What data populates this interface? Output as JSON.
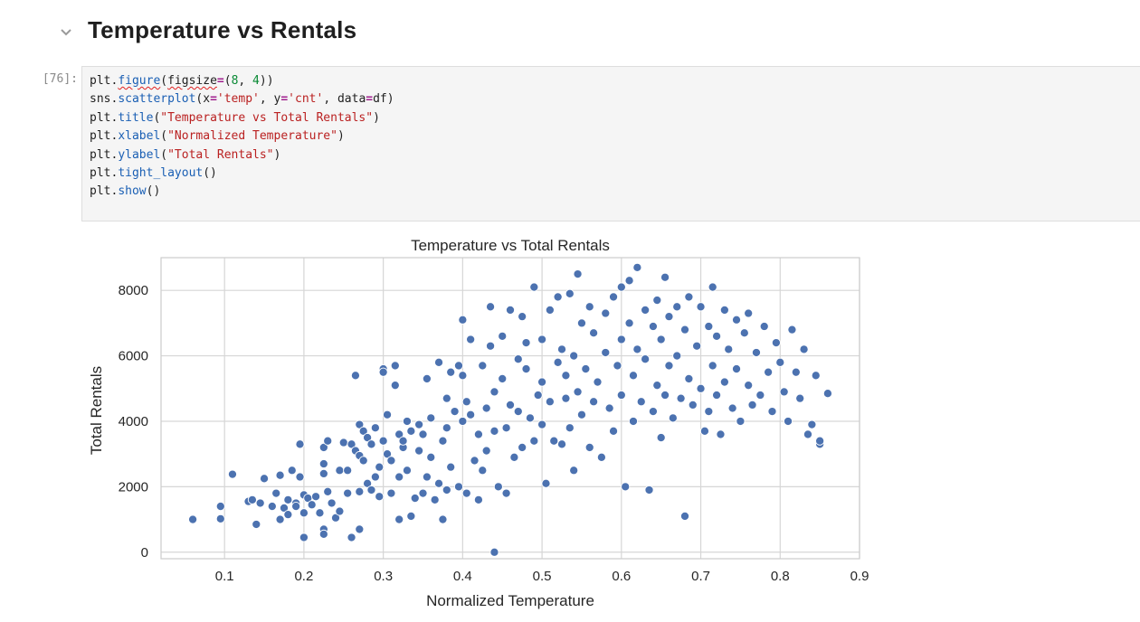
{
  "heading": {
    "title": "Temperature vs Rentals"
  },
  "cell": {
    "prompt": "[76]:",
    "code_lines": [
      [
        {
          "t": "plt",
          "c": ""
        },
        {
          "t": ".",
          "c": ""
        },
        {
          "t": "figure",
          "c": "fn squiggle"
        },
        {
          "t": "(",
          "c": ""
        },
        {
          "t": "figsize",
          "c": "squiggle"
        },
        {
          "t": "=",
          "c": "kw"
        },
        {
          "t": "(",
          "c": ""
        },
        {
          "t": "8",
          "c": "num"
        },
        {
          "t": ", ",
          "c": ""
        },
        {
          "t": "4",
          "c": "num"
        },
        {
          "t": "))",
          "c": ""
        }
      ],
      [
        {
          "t": "sns",
          "c": ""
        },
        {
          "t": ".",
          "c": ""
        },
        {
          "t": "scatterplot",
          "c": "fn"
        },
        {
          "t": "(x",
          "c": ""
        },
        {
          "t": "=",
          "c": "kw"
        },
        {
          "t": "'temp'",
          "c": "str"
        },
        {
          "t": ", y",
          "c": ""
        },
        {
          "t": "=",
          "c": "kw"
        },
        {
          "t": "'cnt'",
          "c": "str"
        },
        {
          "t": ", data",
          "c": ""
        },
        {
          "t": "=",
          "c": "kw"
        },
        {
          "t": "df)",
          "c": ""
        }
      ],
      [
        {
          "t": "plt",
          "c": ""
        },
        {
          "t": ".",
          "c": ""
        },
        {
          "t": "title",
          "c": "fn"
        },
        {
          "t": "(",
          "c": ""
        },
        {
          "t": "\"Temperature vs Total Rentals\"",
          "c": "str"
        },
        {
          "t": ")",
          "c": ""
        }
      ],
      [
        {
          "t": "plt",
          "c": ""
        },
        {
          "t": ".",
          "c": ""
        },
        {
          "t": "xlabel",
          "c": "fn"
        },
        {
          "t": "(",
          "c": ""
        },
        {
          "t": "\"Normalized Temperature\"",
          "c": "str"
        },
        {
          "t": ")",
          "c": ""
        }
      ],
      [
        {
          "t": "plt",
          "c": ""
        },
        {
          "t": ".",
          "c": ""
        },
        {
          "t": "ylabel",
          "c": "fn"
        },
        {
          "t": "(",
          "c": ""
        },
        {
          "t": "\"Total Rentals\"",
          "c": "str"
        },
        {
          "t": ")",
          "c": ""
        }
      ],
      [
        {
          "t": "plt",
          "c": ""
        },
        {
          "t": ".",
          "c": ""
        },
        {
          "t": "tight_layout",
          "c": "fn"
        },
        {
          "t": "()",
          "c": ""
        }
      ],
      [
        {
          "t": "plt",
          "c": ""
        },
        {
          "t": ".",
          "c": ""
        },
        {
          "t": "show",
          "c": "fn"
        },
        {
          "t": "()",
          "c": ""
        }
      ]
    ]
  },
  "colors": {
    "point": "#4c72b0",
    "grid": "#d6d6d6",
    "axes_frame": "#cccccc"
  },
  "chart_data": {
    "type": "scatter",
    "title": "Temperature vs Total Rentals",
    "xlabel": "Normalized Temperature",
    "ylabel": "Total Rentals",
    "xlim": [
      0.02,
      0.9
    ],
    "ylim": [
      -200,
      9000
    ],
    "xticks": [
      0.1,
      0.2,
      0.3,
      0.4,
      0.5,
      0.6,
      0.7,
      0.8,
      0.9
    ],
    "xtick_labels": [
      "0.1",
      "0.2",
      "0.3",
      "0.4",
      "0.5",
      "0.6",
      "0.7",
      "0.8",
      "0.9"
    ],
    "yticks": [
      0,
      2000,
      4000,
      6000,
      8000
    ],
    "ytick_labels": [
      "0",
      "2000",
      "4000",
      "6000",
      "8000"
    ],
    "grid": true,
    "points": [
      [
        0.06,
        1000
      ],
      [
        0.095,
        1020
      ],
      [
        0.095,
        1400
      ],
      [
        0.11,
        2380
      ],
      [
        0.13,
        1550
      ],
      [
        0.135,
        1600
      ],
      [
        0.14,
        850
      ],
      [
        0.145,
        1500
      ],
      [
        0.15,
        2250
      ],
      [
        0.16,
        1400
      ],
      [
        0.165,
        1800
      ],
      [
        0.17,
        2350
      ],
      [
        0.17,
        1000
      ],
      [
        0.175,
        1350
      ],
      [
        0.18,
        1150
      ],
      [
        0.18,
        1600
      ],
      [
        0.185,
        2500
      ],
      [
        0.19,
        1500
      ],
      [
        0.19,
        1400
      ],
      [
        0.195,
        3300
      ],
      [
        0.195,
        2300
      ],
      [
        0.2,
        1750
      ],
      [
        0.2,
        1200
      ],
      [
        0.2,
        450
      ],
      [
        0.205,
        1650
      ],
      [
        0.21,
        1450
      ],
      [
        0.215,
        1700
      ],
      [
        0.22,
        1200
      ],
      [
        0.225,
        3200
      ],
      [
        0.225,
        2700
      ],
      [
        0.225,
        2400
      ],
      [
        0.225,
        700
      ],
      [
        0.225,
        550
      ],
      [
        0.23,
        3400
      ],
      [
        0.23,
        1850
      ],
      [
        0.235,
        1500
      ],
      [
        0.24,
        1050
      ],
      [
        0.245,
        1250
      ],
      [
        0.245,
        2500
      ],
      [
        0.25,
        3350
      ],
      [
        0.255,
        2500
      ],
      [
        0.255,
        1800
      ],
      [
        0.26,
        450
      ],
      [
        0.26,
        3300
      ],
      [
        0.265,
        5400
      ],
      [
        0.265,
        3100
      ],
      [
        0.27,
        2950
      ],
      [
        0.27,
        3900
      ],
      [
        0.27,
        1850
      ],
      [
        0.27,
        700
      ],
      [
        0.275,
        3700
      ],
      [
        0.275,
        2800
      ],
      [
        0.28,
        2100
      ],
      [
        0.28,
        3500
      ],
      [
        0.285,
        3300
      ],
      [
        0.285,
        1900
      ],
      [
        0.29,
        2300
      ],
      [
        0.29,
        3800
      ],
      [
        0.295,
        1700
      ],
      [
        0.295,
        2600
      ],
      [
        0.3,
        3400
      ],
      [
        0.3,
        5600
      ],
      [
        0.3,
        5500
      ],
      [
        0.305,
        3000
      ],
      [
        0.305,
        4200
      ],
      [
        0.31,
        2800
      ],
      [
        0.31,
        1800
      ],
      [
        0.315,
        5700
      ],
      [
        0.315,
        5100
      ],
      [
        0.32,
        3600
      ],
      [
        0.32,
        2300
      ],
      [
        0.32,
        1000
      ],
      [
        0.325,
        3200
      ],
      [
        0.325,
        3400
      ],
      [
        0.33,
        4000
      ],
      [
        0.33,
        2500
      ],
      [
        0.335,
        3700
      ],
      [
        0.335,
        1100
      ],
      [
        0.34,
        1650
      ],
      [
        0.345,
        3900
      ],
      [
        0.345,
        3100
      ],
      [
        0.35,
        1800
      ],
      [
        0.35,
        3600
      ],
      [
        0.355,
        5300
      ],
      [
        0.355,
        2300
      ],
      [
        0.36,
        4100
      ],
      [
        0.36,
        2900
      ],
      [
        0.365,
        1600
      ],
      [
        0.37,
        5800
      ],
      [
        0.37,
        2100
      ],
      [
        0.375,
        1000
      ],
      [
        0.375,
        3400
      ],
      [
        0.38,
        4700
      ],
      [
        0.38,
        3800
      ],
      [
        0.38,
        1900
      ],
      [
        0.385,
        5500
      ],
      [
        0.385,
        2600
      ],
      [
        0.39,
        4300
      ],
      [
        0.395,
        5700
      ],
      [
        0.395,
        2000
      ],
      [
        0.4,
        5400
      ],
      [
        0.4,
        4000
      ],
      [
        0.4,
        7100
      ],
      [
        0.405,
        4600
      ],
      [
        0.405,
        1800
      ],
      [
        0.41,
        6500
      ],
      [
        0.41,
        4200
      ],
      [
        0.415,
        2800
      ],
      [
        0.42,
        1600
      ],
      [
        0.42,
        3600
      ],
      [
        0.425,
        5700
      ],
      [
        0.425,
        2500
      ],
      [
        0.43,
        4400
      ],
      [
        0.43,
        3100
      ],
      [
        0.435,
        7500
      ],
      [
        0.435,
        6300
      ],
      [
        0.44,
        4900
      ],
      [
        0.44,
        3700
      ],
      [
        0.44,
        0
      ],
      [
        0.445,
        2000
      ],
      [
        0.45,
        5300
      ],
      [
        0.45,
        6600
      ],
      [
        0.455,
        3800
      ],
      [
        0.455,
        1800
      ],
      [
        0.46,
        7400
      ],
      [
        0.46,
        4500
      ],
      [
        0.465,
        2900
      ],
      [
        0.47,
        5900
      ],
      [
        0.47,
        4300
      ],
      [
        0.475,
        7200
      ],
      [
        0.475,
        3200
      ],
      [
        0.48,
        5600
      ],
      [
        0.48,
        6400
      ],
      [
        0.485,
        4100
      ],
      [
        0.49,
        8100
      ],
      [
        0.49,
        3400
      ],
      [
        0.495,
        4800
      ],
      [
        0.5,
        6500
      ],
      [
        0.5,
        5200
      ],
      [
        0.5,
        3900
      ],
      [
        0.505,
        2100
      ],
      [
        0.51,
        7400
      ],
      [
        0.51,
        4600
      ],
      [
        0.515,
        3400
      ],
      [
        0.52,
        7800
      ],
      [
        0.52,
        5800
      ],
      [
        0.525,
        6200
      ],
      [
        0.525,
        3300
      ],
      [
        0.53,
        4700
      ],
      [
        0.53,
        5400
      ],
      [
        0.535,
        7900
      ],
      [
        0.535,
        3800
      ],
      [
        0.54,
        6000
      ],
      [
        0.54,
        2500
      ],
      [
        0.545,
        8500
      ],
      [
        0.545,
        4900
      ],
      [
        0.55,
        7000
      ],
      [
        0.55,
        4200
      ],
      [
        0.555,
        5600
      ],
      [
        0.56,
        7500
      ],
      [
        0.56,
        3200
      ],
      [
        0.565,
        6700
      ],
      [
        0.565,
        4600
      ],
      [
        0.57,
        5200
      ],
      [
        0.575,
        2900
      ],
      [
        0.58,
        7300
      ],
      [
        0.58,
        6100
      ],
      [
        0.585,
        4400
      ],
      [
        0.59,
        7800
      ],
      [
        0.59,
        3700
      ],
      [
        0.595,
        5700
      ],
      [
        0.6,
        8100
      ],
      [
        0.6,
        6500
      ],
      [
        0.6,
        4800
      ],
      [
        0.605,
        2000
      ],
      [
        0.61,
        8300
      ],
      [
        0.61,
        7000
      ],
      [
        0.615,
        5400
      ],
      [
        0.615,
        4000
      ],
      [
        0.62,
        8700
      ],
      [
        0.62,
        6200
      ],
      [
        0.625,
        4600
      ],
      [
        0.63,
        7400
      ],
      [
        0.63,
        5900
      ],
      [
        0.635,
        1900
      ],
      [
        0.64,
        6900
      ],
      [
        0.64,
        4300
      ],
      [
        0.645,
        7700
      ],
      [
        0.645,
        5100
      ],
      [
        0.65,
        6500
      ],
      [
        0.65,
        3500
      ],
      [
        0.655,
        8400
      ],
      [
        0.655,
        4800
      ],
      [
        0.66,
        7200
      ],
      [
        0.66,
        5700
      ],
      [
        0.665,
        4100
      ],
      [
        0.67,
        7500
      ],
      [
        0.67,
        6000
      ],
      [
        0.675,
        4700
      ],
      [
        0.68,
        6800
      ],
      [
        0.68,
        1100
      ],
      [
        0.685,
        7800
      ],
      [
        0.685,
        5300
      ],
      [
        0.69,
        4500
      ],
      [
        0.695,
        6300
      ],
      [
        0.7,
        7500
      ],
      [
        0.7,
        5000
      ],
      [
        0.705,
        3700
      ],
      [
        0.71,
        6900
      ],
      [
        0.71,
        4300
      ],
      [
        0.715,
        8100
      ],
      [
        0.715,
        5700
      ],
      [
        0.72,
        6600
      ],
      [
        0.72,
        4800
      ],
      [
        0.725,
        3600
      ],
      [
        0.73,
        7400
      ],
      [
        0.73,
        5200
      ],
      [
        0.735,
        6200
      ],
      [
        0.74,
        4400
      ],
      [
        0.745,
        7100
      ],
      [
        0.745,
        5600
      ],
      [
        0.75,
        4000
      ],
      [
        0.755,
        6700
      ],
      [
        0.76,
        7300
      ],
      [
        0.76,
        5100
      ],
      [
        0.765,
        4500
      ],
      [
        0.77,
        6100
      ],
      [
        0.775,
        4800
      ],
      [
        0.78,
        6900
      ],
      [
        0.785,
        5500
      ],
      [
        0.79,
        4300
      ],
      [
        0.795,
        6400
      ],
      [
        0.8,
        5800
      ],
      [
        0.805,
        4900
      ],
      [
        0.81,
        4000
      ],
      [
        0.815,
        6800
      ],
      [
        0.82,
        5500
      ],
      [
        0.825,
        4700
      ],
      [
        0.83,
        6200
      ],
      [
        0.835,
        3600
      ],
      [
        0.84,
        3900
      ],
      [
        0.845,
        5400
      ],
      [
        0.85,
        3300
      ],
      [
        0.86,
        4850
      ],
      [
        0.85,
        3400
      ]
    ]
  }
}
